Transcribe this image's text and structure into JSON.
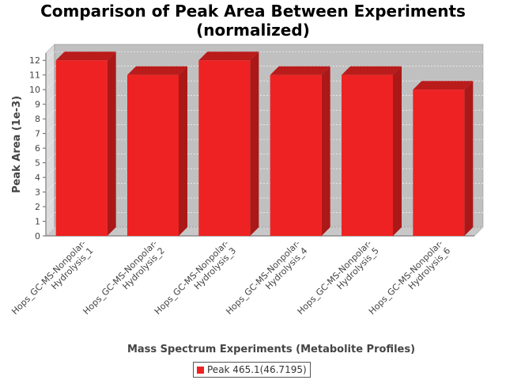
{
  "chart_data": {
    "type": "bar",
    "style": "3d",
    "title_lines": [
      "Comparison of Peak Area Between Experiments",
      "(normalized)"
    ],
    "xlabel": "Mass Spectrum Experiments (Metabolite Profiles)",
    "ylabel": "Peak Area (1e-3)",
    "categories": [
      [
        "Hops_GC-MS-Nonpolar-",
        "Hydrolysis_1"
      ],
      [
        "Hops_GC-MS-Nonpolar-",
        "Hydrolysis_2"
      ],
      [
        "Hops_GC-MS-Nonpolar-",
        "Hydrolysis_3"
      ],
      [
        "Hops_GC-MS-Nonpolar-",
        "Hydrolysis_4"
      ],
      [
        "Hops_GC-MS-Nonpolar-",
        "Hydrolysis_5"
      ],
      [
        "Hops_GC-MS-Nonpolar-",
        "Hydrolysis_6"
      ]
    ],
    "series": [
      {
        "name": "Peak 465.1(46.7195)",
        "color": "#ee2222",
        "values": [
          12,
          11,
          12,
          11,
          11,
          10
        ]
      }
    ],
    "ylim": [
      0,
      12.5
    ],
    "yticks": [
      "0",
      "1",
      "2",
      "3",
      "4",
      "5",
      "6",
      "7",
      "8",
      "9",
      "10",
      "11",
      "12"
    ],
    "grid": true,
    "legend_position": "bottom-center",
    "plot_background": "#c0c0c0"
  }
}
